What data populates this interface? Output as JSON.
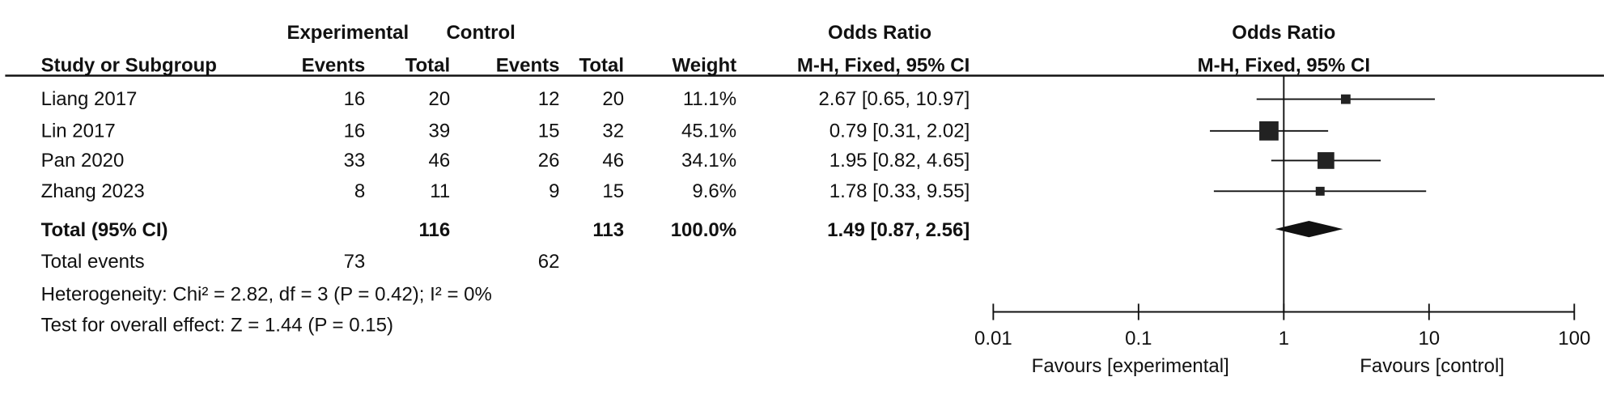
{
  "chart_data": {
    "type": "forest",
    "headers": {
      "group_experimental": "Experimental",
      "group_control": "Control",
      "or_title": "Odds Ratio",
      "plot_title": "Odds Ratio",
      "columns": [
        "Study or Subgroup",
        "Events",
        "Total",
        "Events",
        "Total",
        "Weight",
        "M-H, Fixed, 95% CI"
      ],
      "plot_subtitle": "M-H, Fixed, 95% CI"
    },
    "studies": [
      {
        "name": "Liang 2017",
        "exp_events": "16",
        "exp_total": "20",
        "ctrl_events": "12",
        "ctrl_total": "20",
        "weight": "11.1%",
        "or": 2.67,
        "lo": 0.65,
        "hi": 10.97,
        "ci_text": "2.67 [0.65, 10.97]"
      },
      {
        "name": "Lin 2017",
        "exp_events": "16",
        "exp_total": "39",
        "ctrl_events": "15",
        "ctrl_total": "32",
        "weight": "45.1%",
        "or": 0.79,
        "lo": 0.31,
        "hi": 2.02,
        "ci_text": "0.79 [0.31, 2.02]"
      },
      {
        "name": "Pan 2020",
        "exp_events": "33",
        "exp_total": "46",
        "ctrl_events": "26",
        "ctrl_total": "46",
        "weight": "34.1%",
        "or": 1.95,
        "lo": 0.82,
        "hi": 4.65,
        "ci_text": "1.95 [0.82, 4.65]"
      },
      {
        "name": "Zhang 2023",
        "exp_events": "8",
        "exp_total": "11",
        "ctrl_events": "9",
        "ctrl_total": "15",
        "weight": "9.6%",
        "or": 1.78,
        "lo": 0.33,
        "hi": 9.55,
        "ci_text": "1.78 [0.33, 9.55]"
      }
    ],
    "total": {
      "name": "Total (95% CI)",
      "exp_total": "116",
      "ctrl_total": "113",
      "weight": "100.0%",
      "or": 1.49,
      "lo": 0.87,
      "hi": 2.56,
      "ci_text": "1.49 [0.87, 2.56]"
    },
    "total_events": {
      "label": "Total events",
      "exp": "73",
      "ctrl": "62"
    },
    "heterogeneity": "Heterogeneity: Chi² = 2.82, df = 3 (P = 0.42); I² = 0%",
    "overall_effect": "Test for overall effect: Z = 1.44 (P = 0.15)",
    "x_axis": {
      "scale": "log",
      "range": [
        0.01,
        100
      ],
      "ticks": [
        "0.01",
        "0.1",
        "1",
        "10",
        "100"
      ],
      "tick_values": [
        0.01,
        0.1,
        1,
        10,
        100
      ]
    },
    "favours_left": "Favours [experimental]",
    "favours_right": "Favours [control]",
    "marker_color": "#222222"
  }
}
